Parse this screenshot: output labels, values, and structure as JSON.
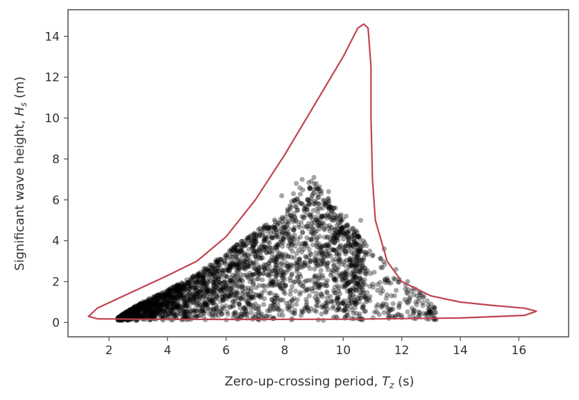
{
  "chart_data": {
    "type": "scatter",
    "title": "",
    "xlabel": "Zero-up-crossing period, ",
    "xlabel_symbol": "T",
    "xlabel_subscript": "z",
    "xlabel_unit": " (s)",
    "ylabel": "Significant wave height, ",
    "ylabel_symbol": "H",
    "ylabel_subscript": "s",
    "ylabel_unit": " (m)",
    "xlim": [
      0.6,
      17.7
    ],
    "ylim": [
      -0.7,
      15.3
    ],
    "xticks": [
      2,
      4,
      6,
      8,
      10,
      12,
      14,
      16
    ],
    "yticks": [
      0,
      2,
      4,
      6,
      8,
      10,
      12,
      14
    ],
    "grid": false,
    "legend": "none",
    "colors": {
      "points": "#000000",
      "contour": "#c0424f",
      "frame": "#555555"
    },
    "scatter_series": {
      "marker": "circle",
      "alpha": 0.35,
      "upper_envelope": [
        [
          2.3,
          0.25
        ],
        [
          3,
          0.9
        ],
        [
          4,
          1.6
        ],
        [
          5,
          2.4
        ],
        [
          6,
          3.4
        ],
        [
          7,
          4.5
        ],
        [
          8,
          5.3
        ],
        [
          8.5,
          6.6
        ],
        [
          9,
          7.0
        ],
        [
          9.8,
          5.5
        ],
        [
          10.5,
          4.4
        ],
        [
          11.2,
          3.3
        ],
        [
          12,
          2.0
        ],
        [
          12.8,
          1.4
        ],
        [
          13.1,
          0.9
        ]
      ],
      "lower_bound": 0.1,
      "outliers": [
        [
          8.4,
          6.8
        ],
        [
          8.6,
          7.0
        ],
        [
          9.0,
          7.1
        ],
        [
          8.3,
          6.3
        ],
        [
          7.9,
          6.2
        ],
        [
          9.5,
          6.4
        ],
        [
          10.1,
          5.2
        ],
        [
          10.6,
          5.0
        ],
        [
          11.4,
          3.6
        ],
        [
          11.8,
          2.6
        ],
        [
          12.2,
          2.0
        ],
        [
          12.6,
          1.2
        ],
        [
          13.0,
          0.9
        ],
        [
          12.4,
          0.6
        ],
        [
          11.6,
          0.3
        ]
      ]
    },
    "contour": {
      "name": "",
      "points": [
        [
          1.3,
          0.3
        ],
        [
          1.6,
          0.7
        ],
        [
          2.5,
          1.3
        ],
        [
          4,
          2.3
        ],
        [
          5,
          3.0
        ],
        [
          6,
          4.2
        ],
        [
          7,
          6.0
        ],
        [
          8,
          8.2
        ],
        [
          9,
          10.6
        ],
        [
          10,
          13.0
        ],
        [
          10.5,
          14.4
        ],
        [
          10.7,
          14.6
        ],
        [
          10.85,
          14.4
        ],
        [
          10.95,
          12.5
        ],
        [
          10.95,
          10.0
        ],
        [
          11,
          7.0
        ],
        [
          11.1,
          5.0
        ],
        [
          11.5,
          3.0
        ],
        [
          12,
          2.0
        ],
        [
          13,
          1.3
        ],
        [
          14,
          1.0
        ],
        [
          15,
          0.85
        ],
        [
          16.2,
          0.7
        ],
        [
          16.6,
          0.55
        ],
        [
          16.2,
          0.35
        ],
        [
          14,
          0.22
        ],
        [
          10,
          0.16
        ],
        [
          6,
          0.15
        ],
        [
          3,
          0.16
        ],
        [
          1.6,
          0.18
        ],
        [
          1.3,
          0.3
        ]
      ]
    }
  }
}
